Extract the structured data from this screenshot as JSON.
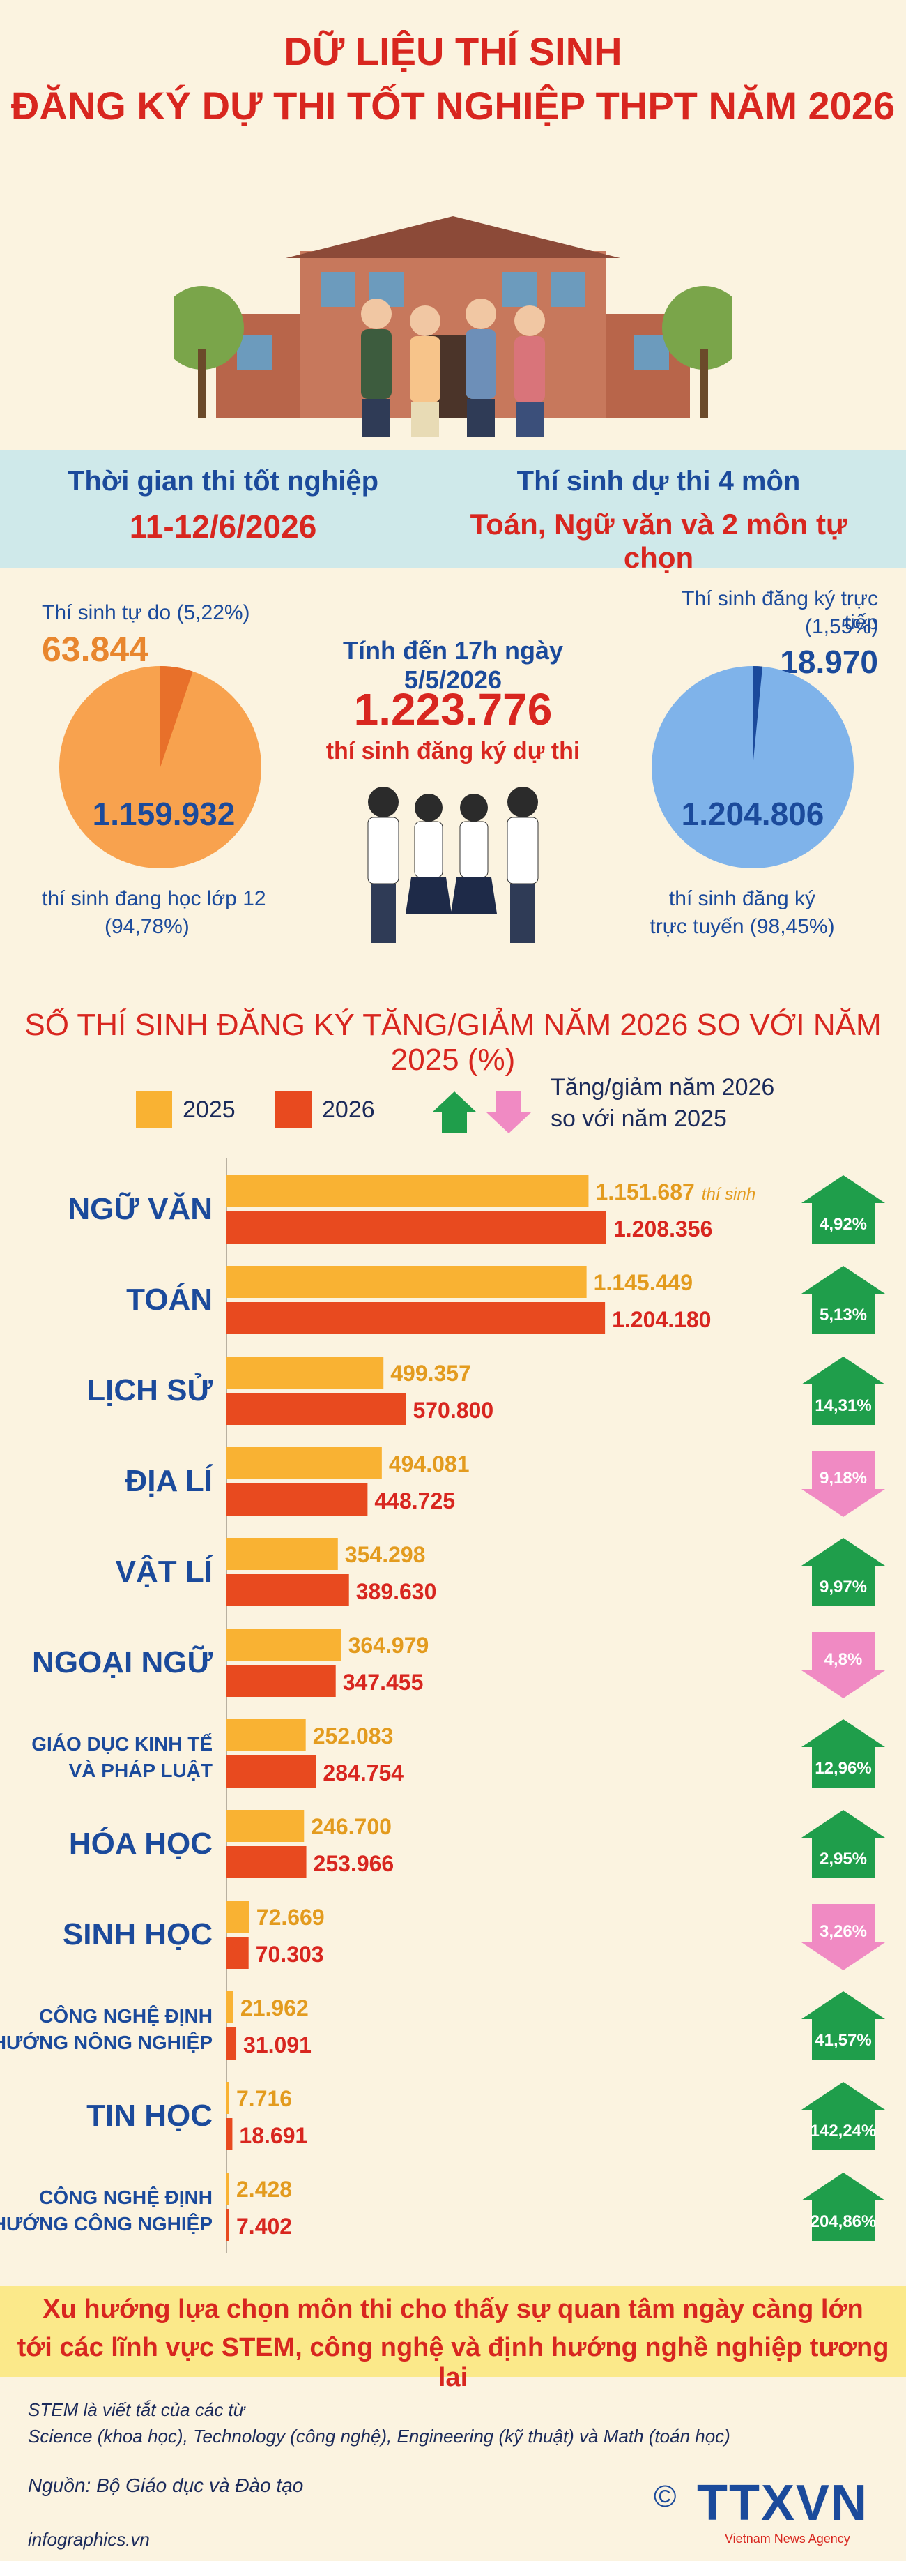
{
  "header": {
    "title_line1": "DỮ LIỆU THÍ SINH",
    "title_line2": "ĐĂNG KÝ DỰ THI TỐT NGHIỆP THPT NĂM 2026"
  },
  "info_band": {
    "left_label": "Thời gian thi tốt nghiệp",
    "left_value": "11-12/6/2026",
    "right_label": "Thí sinh dự thi 4 môn",
    "right_value": "Toán, Ngữ văn và 2 môn tự chọn"
  },
  "summary": {
    "as_of": "Tính đến 17h ngày 5/5/2026",
    "total": "1.223.776",
    "total_label": "thí sinh đăng ký dự thi"
  },
  "pie_left": {
    "slice_small_label": "Thí sinh tự do (5,22%)",
    "slice_small_value": "63.844",
    "slice_large_value": "1.159.932",
    "slice_large_label_1": "thí sinh đang học lớp 12",
    "slice_large_label_2": "(94,78%)",
    "percent_small": 5.22,
    "colors": {
      "large": "#f8a24e",
      "small": "#e8702a"
    }
  },
  "pie_right": {
    "slice_small_label_1": "Thí sinh đăng ký trực tiếp",
    "slice_small_label_2": "(1,55%)",
    "slice_small_value": "18.970",
    "slice_large_value": "1.204.806",
    "slice_large_label_1": "thí sinh đăng ký",
    "slice_large_label_2": "trực tuyến (98,45%)",
    "percent_small": 1.55,
    "colors": {
      "large": "#7fb3ea",
      "small": "#1b4a9b"
    }
  },
  "legend": {
    "label_2025": "2025",
    "label_2026": "2026",
    "change_label_1": "Tăng/giảm năm 2026",
    "change_label_2": "so với năm 2025",
    "color_2025": "#f9b233",
    "color_2026": "#e84a1f",
    "color_up": "#1f9e4b",
    "color_down": "#f08ac3"
  },
  "chart_data": {
    "type": "bar",
    "title": "SỐ THÍ SINH ĐĂNG KÝ TĂNG/GIẢM NĂM 2026 SO VỚI NĂM 2025 (%)",
    "unit_note": "thí sinh",
    "categories": [
      [
        "NGỮ VĂN"
      ],
      [
        "TOÁN"
      ],
      [
        "LỊCH SỬ"
      ],
      [
        "ĐỊA LÍ"
      ],
      [
        "VẬT LÍ"
      ],
      [
        "NGOẠI NGỮ"
      ],
      [
        "GIÁO DỤC KINH TẾ",
        "VÀ PHÁP LUẬT"
      ],
      [
        "HÓA HỌC"
      ],
      [
        "SINH HỌC"
      ],
      [
        "CÔNG NGHỆ ĐỊNH",
        "HƯỚNG NÔNG NGHIỆP"
      ],
      [
        "TIN HỌC"
      ],
      [
        "CÔNG NGHỆ ĐỊNH",
        "HƯỚNG CÔNG NGHIỆP"
      ]
    ],
    "series": [
      {
        "name": "2025",
        "values": [
          1151687,
          1145449,
          499357,
          494081,
          354298,
          364979,
          252083,
          246700,
          72669,
          21962,
          7716,
          2428
        ],
        "labels": [
          "1.151.687",
          "1.145.449",
          "499.357",
          "494.081",
          "354.298",
          "364.979",
          "252.083",
          "246.700",
          "72.669",
          "21.962",
          "7.716",
          "2.428"
        ]
      },
      {
        "name": "2026",
        "values": [
          1208356,
          1204180,
          570800,
          448725,
          389630,
          347455,
          284754,
          253966,
          70303,
          31091,
          18691,
          7402
        ],
        "labels": [
          "1.208.356",
          "1.204.180",
          "570.800",
          "448.725",
          "389.630",
          "347.455",
          "284.754",
          "253.966",
          "70.303",
          "31.091",
          "18.691",
          "7.402"
        ]
      }
    ],
    "change": {
      "labels": [
        "4,92%",
        "5,13%",
        "14,31%",
        "9,18%",
        "9,97%",
        "4,8%",
        "12,96%",
        "2,95%",
        "3,26%",
        "41,57%",
        "142,24%",
        "204,86%"
      ],
      "direction": [
        "up",
        "up",
        "up",
        "down",
        "up",
        "down",
        "up",
        "up",
        "down",
        "up",
        "up",
        "up"
      ]
    },
    "xlim": [
      0,
      1208356
    ]
  },
  "note": {
    "line1": "Xu hướng lựa chọn môn thi cho thấy sự quan tâm ngày càng lớn",
    "line2": "tới các lĩnh vực STEM, công nghệ và định hướng nghề nghiệp tương lai"
  },
  "footer": {
    "stem_1": "STEM là viết tắt của các từ",
    "stem_2": "Science (khoa học), Technology (công nghệ), Engineering (kỹ thuật) và Math (toán học)",
    "source": "Nguồn: Bộ Giáo dục và Đào tạo",
    "site": "infographics.vn",
    "brand": "TTXVN",
    "brand_sub": "Vietnam News Agency",
    "copyright": "©"
  }
}
